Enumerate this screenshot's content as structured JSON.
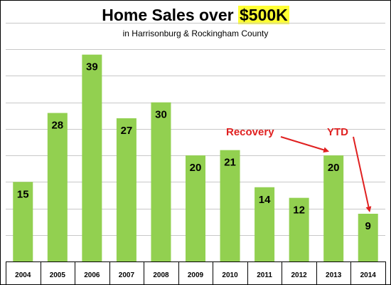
{
  "chart_data": {
    "type": "bar",
    "title_prefix": "Home Sales over ",
    "title_highlight": "$500K",
    "subtitle": "in Harrisonburg & Rockingham County",
    "categories": [
      "2004",
      "2005",
      "2006",
      "2007",
      "2008",
      "2009",
      "2010",
      "2011",
      "2012",
      "2013",
      "2014"
    ],
    "values": [
      15,
      28,
      39,
      27,
      30,
      20,
      21,
      14,
      12,
      20,
      9
    ],
    "ylim": [
      0,
      45
    ],
    "grid": true,
    "bar_color": "#92d050",
    "annotations": [
      {
        "text": "Recovery",
        "target_category": "2013",
        "color": "#e02020"
      },
      {
        "text": "YTD",
        "target_category": "2014",
        "color": "#e02020"
      }
    ]
  }
}
